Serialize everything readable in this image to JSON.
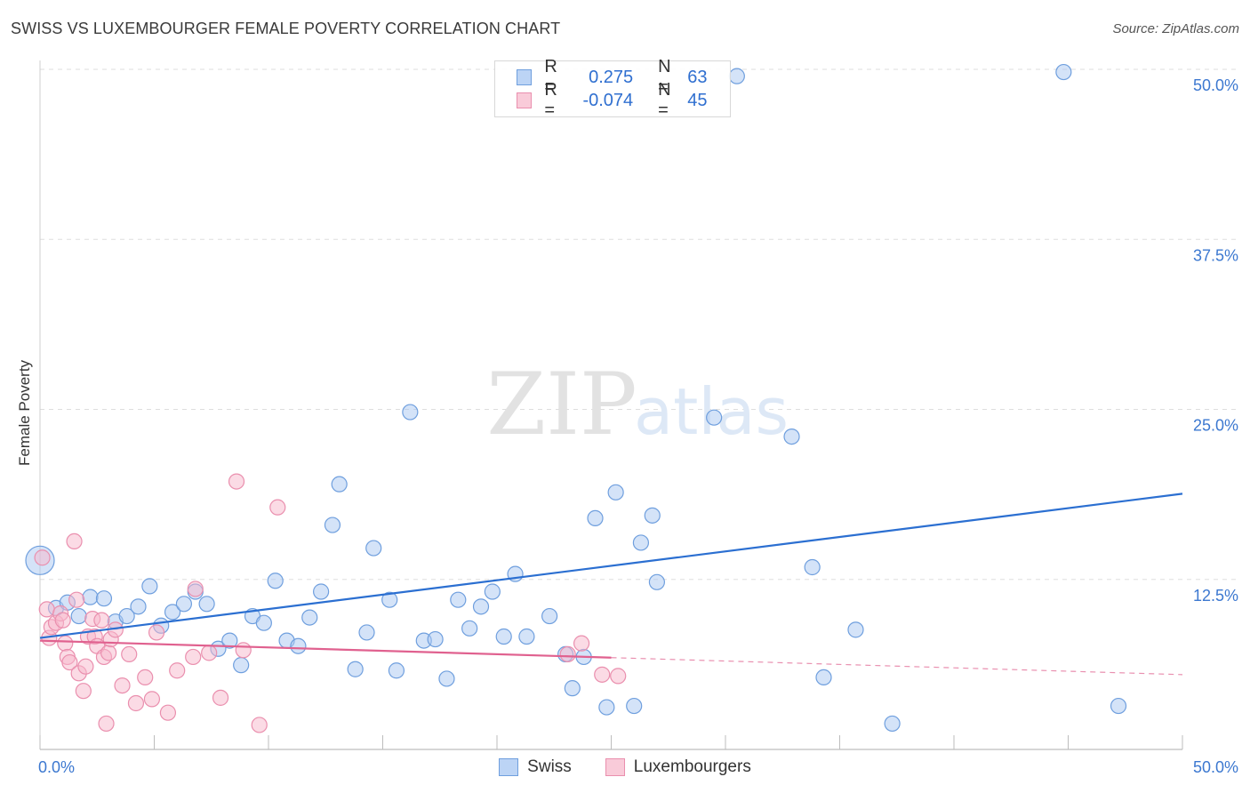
{
  "title": "SWISS VS LUXEMBOURGER FEMALE POVERTY CORRELATION CHART",
  "source": "Source: ZipAtlas.com",
  "watermark": {
    "zip": "ZIP",
    "atlas": "atlas"
  },
  "colors": {
    "swiss_fill": "#a9c7f2",
    "swiss_stroke": "#6f9fde",
    "swiss_line": "#2b6fd1",
    "lux_fill": "#f7b8cc",
    "lux_stroke": "#ea8fae",
    "lux_line": "#e0618f",
    "tick_label": "#3c78d0",
    "grid": "#dddddd"
  },
  "legend": {
    "r_label": "R =",
    "n_label": "N =",
    "rows": [
      {
        "series": "Swiss",
        "r": "0.275",
        "n": "63"
      },
      {
        "series": "Luxembourgers",
        "r": "-0.074",
        "n": "45"
      }
    ]
  },
  "chart_data": {
    "type": "scatter",
    "title": "SWISS VS LUXEMBOURGER FEMALE POVERTY CORRELATION CHART",
    "xlabel": "",
    "ylabel": "Female Poverty",
    "xlim": [
      0,
      50
    ],
    "ylim": [
      0,
      50
    ],
    "x_tick_labels": [
      "0.0%",
      "50.0%"
    ],
    "y_tick_labels": [
      "12.5%",
      "25.0%",
      "37.5%",
      "50.0%"
    ],
    "y_ticks": [
      12.5,
      25.0,
      37.5,
      50.0
    ],
    "grid": true,
    "legend_position": "top-center",
    "series": [
      {
        "name": "Swiss",
        "trend": {
          "x": [
            0,
            50
          ],
          "y": [
            8.2,
            18.8
          ],
          "solid_to": 50
        },
        "points": [
          [
            0.0,
            13.9
          ],
          [
            0.7,
            10.4
          ],
          [
            1.2,
            10.8
          ],
          [
            1.7,
            9.8
          ],
          [
            2.2,
            11.2
          ],
          [
            2.8,
            11.1
          ],
          [
            3.3,
            9.4
          ],
          [
            3.8,
            9.8
          ],
          [
            4.3,
            10.5
          ],
          [
            4.8,
            12.0
          ],
          [
            5.3,
            9.1
          ],
          [
            5.8,
            10.1
          ],
          [
            6.3,
            10.7
          ],
          [
            6.8,
            11.6
          ],
          [
            7.3,
            10.7
          ],
          [
            7.8,
            7.4
          ],
          [
            8.3,
            8.0
          ],
          [
            8.8,
            6.2
          ],
          [
            9.3,
            9.8
          ],
          [
            9.8,
            9.3
          ],
          [
            10.3,
            12.4
          ],
          [
            10.8,
            8.0
          ],
          [
            11.3,
            7.6
          ],
          [
            11.8,
            9.7
          ],
          [
            12.3,
            11.6
          ],
          [
            12.8,
            16.5
          ],
          [
            13.1,
            19.5
          ],
          [
            13.8,
            5.9
          ],
          [
            14.3,
            8.6
          ],
          [
            14.6,
            14.8
          ],
          [
            15.3,
            11.0
          ],
          [
            15.6,
            5.8
          ],
          [
            16.2,
            24.8
          ],
          [
            16.8,
            8.0
          ],
          [
            17.3,
            8.1
          ],
          [
            17.8,
            5.2
          ],
          [
            18.3,
            11.0
          ],
          [
            18.8,
            8.9
          ],
          [
            19.3,
            10.5
          ],
          [
            19.8,
            11.6
          ],
          [
            20.3,
            8.3
          ],
          [
            20.8,
            12.9
          ],
          [
            21.3,
            8.3
          ],
          [
            22.3,
            9.8
          ],
          [
            23.0,
            7.0
          ],
          [
            23.3,
            4.5
          ],
          [
            23.8,
            6.8
          ],
          [
            24.3,
            17.0
          ],
          [
            24.8,
            3.1
          ],
          [
            25.2,
            18.9
          ],
          [
            26.0,
            3.2
          ],
          [
            26.3,
            15.2
          ],
          [
            26.8,
            17.2
          ],
          [
            27.0,
            12.3
          ],
          [
            29.5,
            24.4
          ],
          [
            30.5,
            49.5
          ],
          [
            32.9,
            23.0
          ],
          [
            33.8,
            13.4
          ],
          [
            34.3,
            5.3
          ],
          [
            35.7,
            8.8
          ],
          [
            37.3,
            1.9
          ],
          [
            44.8,
            49.8
          ],
          [
            47.2,
            3.2
          ]
        ]
      },
      {
        "name": "Luxembourgers",
        "trend": {
          "x": [
            0,
            50
          ],
          "y": [
            8.0,
            5.5
          ],
          "solid_to": 25
        },
        "points": [
          [
            0.1,
            14.1
          ],
          [
            0.3,
            10.3
          ],
          [
            0.4,
            8.2
          ],
          [
            0.5,
            9.0
          ],
          [
            0.7,
            9.3
          ],
          [
            0.9,
            10.0
          ],
          [
            1.0,
            9.5
          ],
          [
            1.1,
            7.8
          ],
          [
            1.2,
            6.8
          ],
          [
            1.3,
            6.4
          ],
          [
            1.5,
            15.3
          ],
          [
            1.6,
            11.0
          ],
          [
            1.7,
            5.6
          ],
          [
            1.9,
            4.3
          ],
          [
            2.0,
            6.1
          ],
          [
            2.1,
            8.3
          ],
          [
            2.3,
            9.6
          ],
          [
            2.4,
            8.3
          ],
          [
            2.5,
            7.6
          ],
          [
            2.7,
            9.5
          ],
          [
            2.8,
            6.8
          ],
          [
            2.9,
            1.9
          ],
          [
            3.0,
            7.1
          ],
          [
            3.1,
            8.1
          ],
          [
            3.3,
            8.8
          ],
          [
            3.6,
            4.7
          ],
          [
            3.9,
            7.0
          ],
          [
            4.2,
            3.4
          ],
          [
            4.6,
            5.3
          ],
          [
            4.9,
            3.7
          ],
          [
            5.1,
            8.6
          ],
          [
            5.6,
            2.7
          ],
          [
            6.0,
            5.8
          ],
          [
            6.7,
            6.8
          ],
          [
            6.8,
            11.8
          ],
          [
            7.4,
            7.1
          ],
          [
            7.9,
            3.8
          ],
          [
            8.6,
            19.7
          ],
          [
            8.9,
            7.3
          ],
          [
            9.6,
            1.8
          ],
          [
            10.4,
            17.8
          ],
          [
            23.1,
            7.0
          ],
          [
            23.7,
            7.8
          ],
          [
            24.6,
            5.5
          ],
          [
            25.3,
            5.4
          ]
        ]
      }
    ]
  }
}
